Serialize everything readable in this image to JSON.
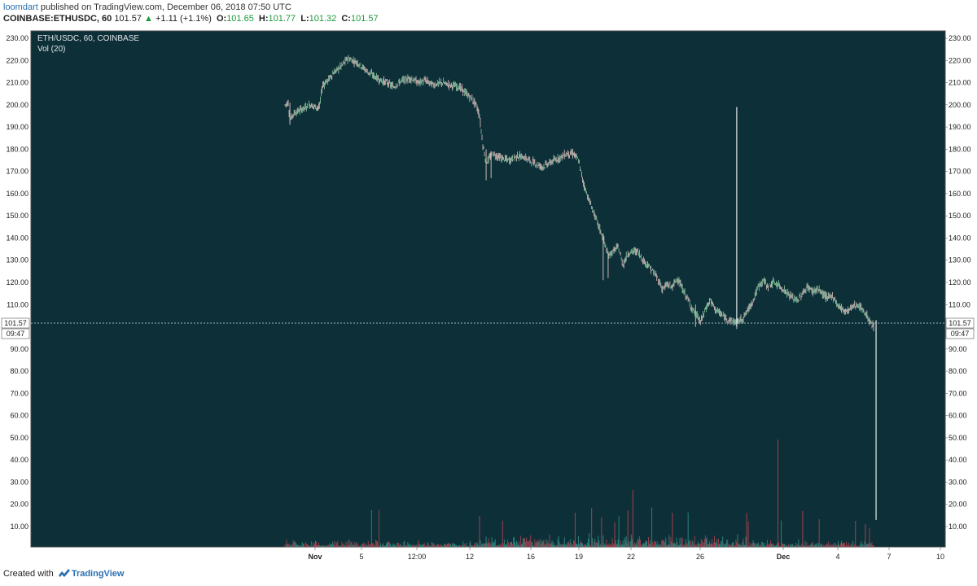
{
  "header": {
    "author": "loomdart",
    "published_text": "published on TradingView.com, December 06, 2018 07:50 UTC",
    "symbol": "COINBASE:ETHUSDC, 60",
    "last": "101.57",
    "change": "+1.11 (+1.1%)",
    "open_label": "O:",
    "open": "101.65",
    "high_label": "H:",
    "high": "101.77",
    "low_label": "L:",
    "low": "101.32",
    "close_label": "C:",
    "close": "101.57"
  },
  "legend": {
    "symbol_line": "ETH/USDC, 60, COINBASE",
    "volume_line": "Vol (20)"
  },
  "price_label": {
    "value": "101.57",
    "countdown": "09:47"
  },
  "footer": {
    "created_with": "Created with",
    "brand": "TradingView"
  },
  "colors": {
    "background": "#0d3038",
    "up": "#8fc9a3",
    "down": "#e4c3c3",
    "vol_up": "#2f8a82",
    "vol_down": "#a2404c",
    "axis_text": "#222222"
  },
  "chart_data": {
    "type": "line",
    "title": "ETH/USDC, 60, COINBASE",
    "y_ticks": [
      "230.00",
      "220.00",
      "210.00",
      "200.00",
      "190.00",
      "180.00",
      "170.00",
      "160.00",
      "150.00",
      "140.00",
      "130.00",
      "120.00",
      "110.00",
      "90.00",
      "80.00",
      "70.00",
      "60.00",
      "50.00",
      "40.00",
      "30.00",
      "20.00",
      "10.00"
    ],
    "x_ticks": [
      "Nov",
      "5",
      "12:00",
      "12",
      "16",
      "19",
      "22",
      "26",
      "Dec",
      "4",
      "7",
      "10"
    ],
    "ylim": [
      0,
      235
    ],
    "price_series": {
      "name": "ETH/USDC",
      "values": [
        [
          0,
          200
        ],
        [
          4,
          201
        ],
        [
          6,
          193
        ],
        [
          10,
          196
        ],
        [
          20,
          198
        ],
        [
          30,
          200
        ],
        [
          38,
          199
        ],
        [
          42,
          199
        ],
        [
          44,
          205
        ],
        [
          46,
          209
        ],
        [
          52,
          211
        ],
        [
          58,
          214
        ],
        [
          64,
          216
        ],
        [
          70,
          218
        ],
        [
          76,
          221
        ],
        [
          82,
          220
        ],
        [
          88,
          219
        ],
        [
          94,
          217
        ],
        [
          100,
          215
        ],
        [
          108,
          213
        ],
        [
          116,
          211
        ],
        [
          124,
          210
        ],
        [
          132,
          208
        ],
        [
          142,
          211
        ],
        [
          152,
          212
        ],
        [
          162,
          210
        ],
        [
          170,
          211
        ],
        [
          180,
          209
        ],
        [
          190,
          210
        ],
        [
          200,
          209
        ],
        [
          212,
          208
        ],
        [
          220,
          205
        ],
        [
          226,
          203
        ],
        [
          232,
          200
        ],
        [
          236,
          195
        ],
        [
          240,
          182
        ],
        [
          244,
          174
        ],
        [
          252,
          178
        ],
        [
          262,
          176
        ],
        [
          272,
          175
        ],
        [
          282,
          177
        ],
        [
          292,
          176
        ],
        [
          302,
          174
        ],
        [
          312,
          172
        ],
        [
          322,
          174
        ],
        [
          332,
          176
        ],
        [
          342,
          178
        ],
        [
          350,
          178
        ],
        [
          356,
          175
        ],
        [
          362,
          165
        ],
        [
          368,
          158
        ],
        [
          374,
          152
        ],
        [
          380,
          146
        ],
        [
          386,
          140
        ],
        [
          392,
          132
        ],
        [
          398,
          134
        ],
        [
          404,
          136
        ],
        [
          410,
          128
        ],
        [
          416,
          133
        ],
        [
          422,
          134
        ],
        [
          428,
          134
        ],
        [
          434,
          130
        ],
        [
          440,
          128
        ],
        [
          446,
          125
        ],
        [
          452,
          122
        ],
        [
          458,
          117
        ],
        [
          464,
          119
        ],
        [
          470,
          118
        ],
        [
          476,
          122
        ],
        [
          482,
          117
        ],
        [
          488,
          113
        ],
        [
          494,
          108
        ],
        [
          500,
          105
        ],
        [
          504,
          102
        ],
        [
          510,
          108
        ],
        [
          516,
          112
        ],
        [
          522,
          108
        ],
        [
          528,
          106
        ],
        [
          534,
          104
        ],
        [
          540,
          103
        ],
        [
          548,
          102
        ],
        [
          556,
          104
        ],
        [
          562,
          108
        ],
        [
          568,
          112
        ],
        [
          574,
          118
        ],
        [
          580,
          121
        ],
        [
          586,
          118
        ],
        [
          592,
          120
        ],
        [
          598,
          119
        ],
        [
          604,
          117
        ],
        [
          610,
          115
        ],
        [
          616,
          113
        ],
        [
          622,
          112
        ],
        [
          628,
          115
        ],
        [
          634,
          118
        ],
        [
          640,
          116
        ],
        [
          646,
          117
        ],
        [
          652,
          115
        ],
        [
          658,
          113
        ],
        [
          664,
          114
        ],
        [
          670,
          110
        ],
        [
          676,
          108
        ],
        [
          682,
          107
        ],
        [
          688,
          109
        ],
        [
          694,
          110
        ],
        [
          700,
          108
        ],
        [
          706,
          105
        ],
        [
          710,
          102
        ],
        [
          714,
          100
        ]
      ]
    },
    "spikes": [
      {
        "note": "wick",
        "x": 548,
        "low": 100,
        "high": 199
      },
      {
        "note": "wick",
        "x": 717,
        "low": 13,
        "high": 103
      }
    ],
    "volume_series": {
      "name": "Vol (20)"
    }
  }
}
